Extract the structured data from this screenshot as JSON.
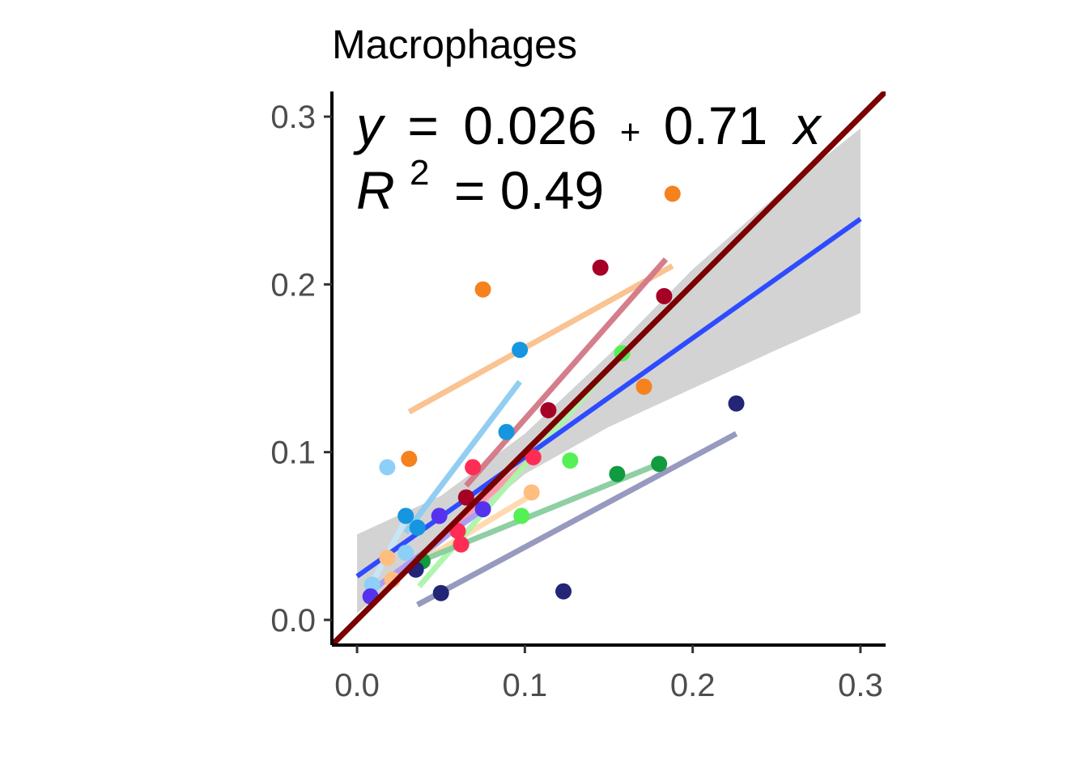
{
  "chart_data": {
    "type": "scatter",
    "title": "Macrophages",
    "xlabel": "",
    "ylabel": "",
    "xlim": [
      -0.015,
      0.315
    ],
    "ylim": [
      -0.015,
      0.315
    ],
    "x_ticks": [
      "0.0",
      "0.1",
      "0.2",
      "0.3"
    ],
    "y_ticks": [
      "0.0",
      "0.1",
      "0.2",
      "0.3"
    ],
    "x_tick_values": [
      0.0,
      0.1,
      0.2,
      0.3
    ],
    "y_tick_values": [
      0.0,
      0.1,
      0.2,
      0.3
    ],
    "grid": false,
    "annotation": {
      "eq_y": "y",
      "eq_eq": "=",
      "eq_intercept": "0.026",
      "eq_plus": "+",
      "eq_slope": "0.71",
      "eq_x": "x",
      "r2_r": "R",
      "r2_sup": "2",
      "r2_rest": "= 0.49"
    },
    "overall_fit": {
      "intercept": 0.026,
      "slope": 0.71,
      "x_range": [
        0.0,
        0.3
      ],
      "color": "#2e4bff"
    },
    "confidence_band": [
      {
        "x": 0.0,
        "lower": 0.004,
        "upper": 0.051
      },
      {
        "x": 0.05,
        "lower": 0.045,
        "upper": 0.074
      },
      {
        "x": 0.1,
        "lower": 0.087,
        "upper": 0.111
      },
      {
        "x": 0.15,
        "lower": 0.115,
        "upper": 0.158
      },
      {
        "x": 0.2,
        "lower": 0.138,
        "upper": 0.209
      },
      {
        "x": 0.25,
        "lower": 0.161,
        "upper": 0.253
      },
      {
        "x": 0.3,
        "lower": 0.183,
        "upper": 0.293
      }
    ],
    "identity_line": {
      "color": "#7a0000"
    },
    "groups": [
      {
        "color": "#f5821f",
        "fit_color": "#f9c08c",
        "fit": [
          [
            0.031,
            0.124
          ],
          [
            0.188,
            0.211
          ]
        ],
        "points": [
          [
            0.031,
            0.096
          ],
          [
            0.075,
            0.197
          ],
          [
            0.171,
            0.139
          ],
          [
            0.188,
            0.254
          ]
        ]
      },
      {
        "color": "#ffbe80",
        "fit_color": "#ffd8ac",
        "fit": [
          [
            0.015,
            0.021
          ],
          [
            0.105,
            0.075
          ]
        ],
        "points": [
          [
            0.018,
            0.037
          ],
          [
            0.021,
            0.024
          ],
          [
            0.104,
            0.076
          ]
        ]
      },
      {
        "color": "#a50026",
        "fit_color": "#d27786",
        "fit": [
          [
            0.065,
            0.08
          ],
          [
            0.184,
            0.215
          ]
        ],
        "points": [
          [
            0.065,
            0.073
          ],
          [
            0.114,
            0.125
          ],
          [
            0.145,
            0.21
          ],
          [
            0.183,
            0.193
          ]
        ]
      },
      {
        "color": "#ff2d55",
        "fit_color": "#ff98aa",
        "fit": [
          [
            0.05,
            0.05
          ],
          [
            0.105,
            0.097
          ]
        ],
        "points": [
          [
            0.06,
            0.053
          ],
          [
            0.062,
            0.045
          ],
          [
            0.069,
            0.091
          ],
          [
            0.105,
            0.097
          ]
        ]
      },
      {
        "color": "#1696e0",
        "fit_color": "#8bcbf0",
        "fit": [
          [
            0.029,
            0.052
          ],
          [
            0.097,
            0.142
          ]
        ],
        "points": [
          [
            0.029,
            0.062
          ],
          [
            0.036,
            0.055
          ],
          [
            0.089,
            0.112
          ],
          [
            0.097,
            0.161
          ]
        ]
      },
      {
        "color": "#8ecff8",
        "fit_color": "#c6e6fb",
        "fit": [
          [
            0.009,
            0.022
          ],
          [
            0.03,
            0.062
          ]
        ],
        "points": [
          [
            0.009,
            0.021
          ],
          [
            0.018,
            0.091
          ],
          [
            0.029,
            0.04
          ]
        ]
      },
      {
        "color": "#55f055",
        "fit_color": "#aaf5aa",
        "fit": [
          [
            0.037,
            0.02
          ],
          [
            0.157,
            0.158
          ]
        ],
        "points": [
          [
            0.098,
            0.062
          ],
          [
            0.127,
            0.095
          ],
          [
            0.158,
            0.159
          ]
        ]
      },
      {
        "color": "#129a3e",
        "fit_color": "#88cc9e",
        "fit": [
          [
            0.035,
            0.034
          ],
          [
            0.18,
            0.093
          ]
        ],
        "points": [
          [
            0.039,
            0.035
          ],
          [
            0.155,
            0.087
          ],
          [
            0.18,
            0.093
          ]
        ]
      },
      {
        "color": "#5533ee",
        "fit_color": "#aa99f6",
        "fit": [
          [
            0.008,
            0.017
          ],
          [
            0.075,
            0.066
          ]
        ],
        "points": [
          [
            0.008,
            0.014
          ],
          [
            0.049,
            0.062
          ],
          [
            0.075,
            0.066
          ]
        ]
      },
      {
        "color": "#232577",
        "fit_color": "#9193bb",
        "fit": [
          [
            0.036,
            0.009
          ],
          [
            0.226,
            0.111
          ]
        ],
        "points": [
          [
            0.035,
            0.03
          ],
          [
            0.05,
            0.016
          ],
          [
            0.123,
            0.017
          ],
          [
            0.226,
            0.129
          ]
        ]
      }
    ]
  }
}
